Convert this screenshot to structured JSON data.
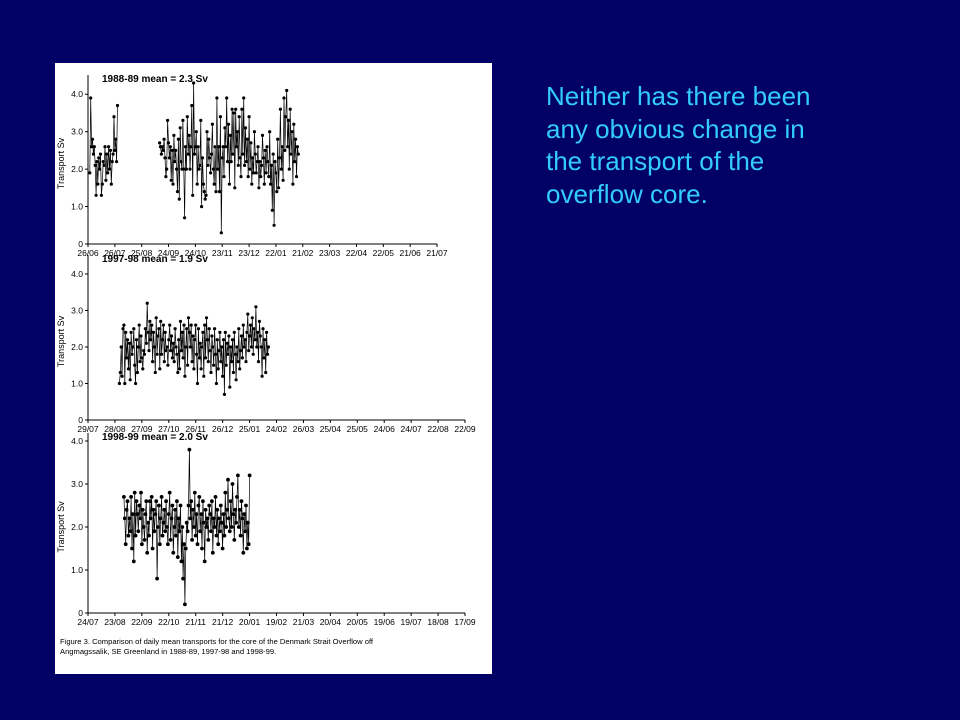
{
  "slide": {
    "text_lines": [
      "Neither has there been",
      "any obvious change in",
      "the transport of the",
      "overflow core."
    ],
    "text_color": "#33ccff",
    "background_color": "#000066"
  },
  "figure": {
    "caption_lines": [
      "Figure 3. Comparison of daily mean transports for the core of the Denmark Strait Overflow off",
      "Angmagssalik, SE Greenland in 1988-89, 1997-98 and 1998-99."
    ]
  },
  "chart_data": [
    {
      "type": "line",
      "title": "1988-89 mean = 2.3 Sv",
      "ylabel": "Transport Sv",
      "ylim": [
        0,
        4.3
      ],
      "yticks": [
        "0",
        "1.0",
        "2.0",
        "3.0",
        "4.0"
      ],
      "xtick_labels": [
        "26/06",
        "26/07",
        "25/08",
        "24/09",
        "24/10",
        "23/11",
        "23/12",
        "22/01",
        "21/02",
        "23/03",
        "22/04",
        "22/05",
        "21/06",
        "21/07"
      ],
      "x_start_day": 0,
      "x_end_day": 390,
      "segments": [
        {
          "start_day": 2,
          "values": [
            1.9,
            3.9,
            2.6,
            2.8,
            2.4,
            2.6,
            2.1,
            1.3,
            2.2,
            1.6,
            2.3,
            2.0,
            2.4,
            1.3,
            1.6,
            2.2,
            2.1,
            2.6,
            1.7,
            2.4,
            1.9,
            2.6,
            2.0,
            2.5,
            1.6,
            2.2,
            2.4,
            3.4,
            2.5,
            2.8,
            2.2,
            3.7
          ]
        },
        {
          "start_day": 80,
          "values": [
            2.7,
            2.6,
            2.4,
            2.6,
            2.5,
            2.8,
            2.3,
            1.8,
            2.0,
            3.3,
            2.7,
            2.3,
            2.6,
            1.7,
            2.5,
            1.6,
            2.9,
            2.2,
            2.5,
            2.0,
            1.4,
            2.8,
            1.2,
            3.1,
            2.2,
            2.0,
            3.3,
            2.0,
            0.7,
            2.6,
            2.0,
            3.4,
            2.4,
            2.9,
            2.0,
            2.6,
            3.7,
            1.3,
            4.3,
            2.4,
            2.6,
            3.0,
            1.6,
            2.6,
            2.0,
            2.1,
            3.3,
            1.0,
            2.3,
            1.6,
            1.4,
            1.2,
            1.3,
            3.0,
            2.1,
            2.8,
            2.3,
            1.9,
            2.4,
            3.2,
            2.0,
            1.6,
            2.6,
            1.4,
            3.9,
            2.0,
            2.6,
            1.4,
            3.4,
            0.3,
            2.3,
            2.6,
            1.8,
            3.1,
            2.6,
            3.9,
            2.2,
            3.2,
            1.6,
            2.9,
            2.2,
            3.6,
            2.4,
            3.5,
            1.5,
            3.6,
            2.6,
            3.0,
            2.1,
            3.4,
            2.3,
            1.8,
            3.6,
            2.4,
            3.9,
            2.1,
            3.1,
            2.2,
            2.8,
            1.8,
            3.4,
            2.0,
            2.7,
            1.6,
            2.3,
            1.9,
            3.0,
            2.4,
            1.9,
            2.2,
            2.6,
            1.5,
            2.2,
            1.8,
            2.1,
            2.9,
            2.3,
            1.6,
            2.5,
            1.9,
            2.6,
            2.2,
            1.8,
            3.0,
            1.6,
            2.1,
            0.9,
            2.4,
            0.5,
            2.2,
            1.9,
            1.4,
            2.8,
            1.5,
            2.3,
            3.6,
            2.0,
            2.6,
            1.7,
            3.9,
            2.5,
            3.4,
            4.1,
            2.6,
            3.3,
            2.0,
            3.6,
            2.4,
            3.0,
            1.6,
            3.2,
            2.2,
            2.8,
            1.8,
            2.6,
            2.4
          ]
        }
      ]
    },
    {
      "type": "line",
      "title": "1997-98 mean = 1.9 Sv",
      "ylabel": "Transport Sv",
      "ylim": [
        0,
        4.3
      ],
      "yticks": [
        "0",
        "1.0",
        "2.0",
        "3.0",
        "4.0"
      ],
      "xtick_labels": [
        "29/07",
        "28/08",
        "27/09",
        "27/10",
        "26/11",
        "26/12",
        "25/01",
        "24/02",
        "26/03",
        "25/04",
        "25/05",
        "24/06",
        "24/07",
        "22/08",
        "22/09"
      ],
      "x_start_day": 0,
      "x_end_day": 420,
      "segments": [
        {
          "start_day": 35,
          "values": [
            1.0,
            1.3,
            2.0,
            1.2,
            2.5,
            2.6,
            1.0,
            2.4,
            1.7,
            2.2,
            1.4,
            2.1,
            1.1,
            2.4,
            1.8,
            2.0,
            2.5,
            1.5,
            1.0,
            2.2,
            1.3,
            2.0,
            2.6,
            1.6,
            2.3,
            1.7,
            1.4,
            1.9,
            1.8,
            2.5,
            2.1,
            3.2,
            2.4,
            1.9,
            2.7,
            2.2,
            2.6,
            1.6,
            2.4,
            2.0,
            1.3,
            2.8,
            1.8,
            2.3,
            2.5,
            1.4,
            2.7,
            1.8,
            2.2,
            2.6,
            1.6,
            2.4,
            1.9,
            2.0,
            1.5,
            2.2,
            2.6,
            1.9,
            2.3,
            1.7,
            2.1,
            1.6,
            2.5,
            2.0,
            1.8,
            1.3,
            2.2,
            1.4,
            2.7,
            1.9,
            2.4,
            1.7,
            2.6,
            1.2,
            2.0,
            2.5,
            1.5,
            2.8,
            2.4,
            2.0,
            2.6,
            1.6,
            2.3,
            1.4,
            2.2,
            2.6,
            1.8,
            1.0,
            2.5,
            1.7,
            2.1,
            1.4,
            2.0,
            2.4,
            1.2,
            2.6,
            1.7,
            2.8,
            2.2,
            1.6,
            2.5,
            1.9,
            1.3,
            2.3,
            2.0,
            1.5,
            2.5,
            1.8,
            1.0,
            2.2,
            1.4,
            1.9,
            2.4,
            1.6,
            2.0,
            1.2,
            2.2,
            0.7,
            2.4,
            1.5,
            2.1,
            1.8,
            2.3,
            0.9,
            2.0,
            1.6,
            2.2,
            1.3,
            2.4,
            1.8,
            1.1,
            2.0,
            1.6,
            2.5,
            1.4,
            1.9,
            2.3,
            1.7,
            2.6,
            2.0,
            2.2,
            1.6,
            2.4,
            2.9,
            1.9,
            2.3,
            2.6,
            2.0,
            2.8,
            1.8,
            2.5,
            2.2,
            3.1,
            2.0,
            2.4,
            1.6,
            2.7,
            2.3,
            2.0,
            1.2,
            2.5,
            1.7,
            2.2,
            1.3,
            2.4,
            1.8,
            2.0
          ]
        }
      ]
    },
    {
      "type": "line",
      "title": "1998-99 mean = 2.0 Sv",
      "ylabel": "Transport Sv",
      "ylim": [
        0,
        4.0
      ],
      "yticks": [
        "0",
        "1.0",
        "2.0",
        "3.0",
        "4.0"
      ],
      "xtick_labels": [
        "24/07",
        "23/08",
        "22/09",
        "22/10",
        "21/11",
        "21/12",
        "20/01",
        "19/02",
        "21/03",
        "20/04",
        "20/05",
        "19/06",
        "19/07",
        "18/08",
        "17/09"
      ],
      "x_start_day": 0,
      "x_end_day": 420,
      "segments": [
        {
          "start_day": 40,
          "values": [
            2.7,
            2.2,
            1.6,
            2.4,
            2.6,
            1.8,
            2.2,
            1.9,
            2.7,
            1.5,
            2.3,
            1.2,
            2.8,
            1.8,
            2.6,
            2.3,
            1.9,
            2.5,
            2.2,
            2.8,
            1.6,
            2.4,
            2.0,
            1.7,
            2.3,
            2.6,
            1.4,
            2.1,
            1.8,
            2.6,
            2.2,
            2.7,
            1.5,
            2.4,
            1.9,
            2.3,
            2.6,
            0.8,
            2.0,
            2.5,
            1.6,
            2.2,
            2.7,
            1.8,
            2.1,
            2.4,
            1.9,
            2.6,
            2.0,
            1.6,
            2.3,
            2.8,
            1.7,
            2.2,
            2.5,
            1.4,
            2.0,
            2.4,
            1.8,
            2.6,
            1.3,
            2.2,
            1.9,
            2.5,
            1.2,
            2.0,
            0.8,
            1.6,
            0.2,
            1.5,
            2.1,
            1.9,
            2.5,
            3.8,
            2.2,
            2.6,
            1.7,
            2.4,
            2.0,
            2.8,
            1.8,
            2.3,
            1.6,
            2.5,
            2.7,
            1.9,
            2.3,
            1.5,
            2.6,
            2.1,
            1.2,
            2.4,
            2.0,
            2.2,
            1.7,
            2.5,
            2.3,
            1.9,
            2.6,
            1.4,
            2.2,
            2.0,
            2.7,
            1.8,
            2.4,
            1.6,
            2.2,
            1.9,
            2.5,
            2.1,
            1.5,
            2.3,
            1.8,
            2.8,
            2.0,
            2.4,
            3.1,
            2.2,
            1.9,
            2.6,
            2.0,
            3.0,
            2.3,
            1.7,
            2.4,
            2.1,
            2.7,
            3.2,
            2.0,
            2.4,
            1.8,
            2.6,
            2.2,
            1.4,
            2.3,
            1.9,
            2.5,
            1.5,
            2.1,
            1.6,
            3.2
          ]
        }
      ]
    }
  ]
}
